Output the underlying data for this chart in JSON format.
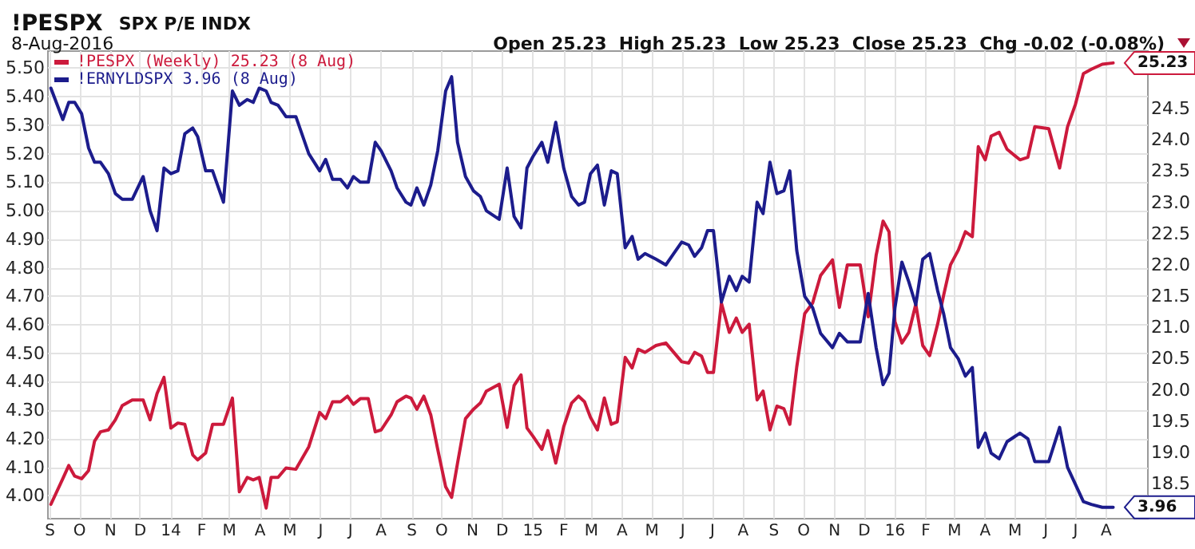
{
  "chart_data": {
    "type": "line",
    "title": "!PESPX",
    "subtitle": "SPX P/E INDX",
    "annotations": [
      "8-Aug-2016",
      "Open 25.23  High 25.23  Low 25.23  Close 25.23  Chg -0.02 (-0.08%)",
      "25.23",
      "3.96"
    ],
    "x": [
      "2013-09-02",
      "2013-09-14",
      "2013-09-20",
      "2013-09-26",
      "2013-10-03",
      "2013-10-10",
      "2013-10-16",
      "2013-10-22",
      "2013-10-30",
      "2013-11-06",
      "2013-11-13",
      "2013-11-23",
      "2013-12-04",
      "2013-12-11",
      "2013-12-18",
      "2013-12-25",
      "2014-01-01",
      "2014-01-08",
      "2014-01-15",
      "2014-01-23",
      "2014-01-28",
      "2014-02-05",
      "2014-02-12",
      "2014-02-23",
      "2014-03-04",
      "2014-03-11",
      "2014-03-19",
      "2014-03-25",
      "2014-03-31",
      "2014-04-07",
      "2014-04-12",
      "2014-04-19",
      "2014-04-27",
      "2014-05-07",
      "2014-05-20",
      "2014-05-31",
      "2014-06-06",
      "2014-06-13",
      "2014-06-21",
      "2014-06-28",
      "2014-07-04",
      "2014-07-11",
      "2014-07-19",
      "2014-07-26",
      "2014-08-01",
      "2014-08-11",
      "2014-08-17",
      "2014-08-26",
      "2014-08-31",
      "2014-09-06",
      "2014-09-13",
      "2014-09-20",
      "2014-09-27",
      "2014-10-05",
      "2014-10-11",
      "2014-10-17",
      "2014-10-25",
      "2014-11-02",
      "2014-11-09",
      "2014-11-15",
      "2014-11-28",
      "2014-12-06",
      "2014-12-13",
      "2014-12-20",
      "2014-12-26",
      "2015-01-01",
      "2015-01-10",
      "2015-01-16",
      "2015-01-24",
      "2015-02-01",
      "2015-02-09",
      "2015-02-16",
      "2015-02-22",
      "2015-02-28",
      "2015-03-07",
      "2015-03-14",
      "2015-03-21",
      "2015-03-27",
      "2015-04-04",
      "2015-04-11",
      "2015-04-17",
      "2015-04-24",
      "2015-05-05",
      "2015-05-15",
      "2015-05-23",
      "2015-05-31",
      "2015-06-07",
      "2015-06-13",
      "2015-06-20",
      "2015-06-26",
      "2015-07-02",
      "2015-07-10",
      "2015-07-18",
      "2015-07-25",
      "2015-07-31",
      "2015-08-07",
      "2015-08-15",
      "2015-08-21",
      "2015-08-28",
      "2015-09-04",
      "2015-09-11",
      "2015-09-17",
      "2015-09-24",
      "2015-10-02",
      "2015-10-10",
      "2015-10-18",
      "2015-10-30",
      "2015-11-06",
      "2015-11-14",
      "2015-11-27",
      "2015-12-05",
      "2015-12-13",
      "2015-12-20",
      "2015-12-26",
      "2016-01-01",
      "2016-01-08",
      "2016-01-15",
      "2016-01-22",
      "2016-01-29",
      "2016-02-05",
      "2016-02-13",
      "2016-02-19",
      "2016-02-26",
      "2016-03-05",
      "2016-03-12",
      "2016-03-19",
      "2016-03-25",
      "2016-04-01",
      "2016-04-07",
      "2016-04-15",
      "2016-04-23",
      "2016-05-06",
      "2016-05-14",
      "2016-05-21",
      "2016-06-04",
      "2016-06-15",
      "2016-06-23",
      "2016-07-01",
      "2016-07-09",
      "2016-07-17",
      "2016-07-28",
      "2016-08-08"
    ],
    "series": [
      {
        "name": "!PESPX (Weekly) 25.23 (8 Aug)",
        "color": "#cc1a3c",
        "axis": "y2",
        "values": [
          18.17,
          18.58,
          18.79,
          18.62,
          18.58,
          18.71,
          19.18,
          19.33,
          19.36,
          19.52,
          19.75,
          19.84,
          19.84,
          19.52,
          19.94,
          20.2,
          19.39,
          19.47,
          19.45,
          18.96,
          18.88,
          18.99,
          19.45,
          19.45,
          19.87,
          18.37,
          18.6,
          18.56,
          18.6,
          18.11,
          18.6,
          18.6,
          18.75,
          18.73,
          19.09,
          19.64,
          19.54,
          19.81,
          19.81,
          19.9,
          19.77,
          19.86,
          19.86,
          19.33,
          19.36,
          19.6,
          19.81,
          19.9,
          19.87,
          19.69,
          19.9,
          19.6,
          19.05,
          18.45,
          18.28,
          18.83,
          19.54,
          19.69,
          19.79,
          19.98,
          20.09,
          19.4,
          20.07,
          20.24,
          19.39,
          19.26,
          19.05,
          19.35,
          18.83,
          19.41,
          19.79,
          19.9,
          19.81,
          19.56,
          19.36,
          19.87,
          19.45,
          19.49,
          20.52,
          20.35,
          20.65,
          20.6,
          20.71,
          20.75,
          20.6,
          20.45,
          20.43,
          20.6,
          20.54,
          20.28,
          20.28,
          21.39,
          20.92,
          21.15,
          20.92,
          21.05,
          19.84,
          19.98,
          19.36,
          19.74,
          19.7,
          19.45,
          20.37,
          21.22,
          21.39,
          21.83,
          22.08,
          21.32,
          22.0,
          22.0,
          21.17,
          22.15,
          22.7,
          22.53,
          21.09,
          20.75,
          20.92,
          21.37,
          20.71,
          20.55,
          21.05,
          21.51,
          22.0,
          22.24,
          22.53,
          22.45,
          23.89,
          23.68,
          24.06,
          24.12,
          23.85,
          23.68,
          23.72,
          24.21,
          24.18,
          23.55,
          24.21,
          24.57,
          25.06,
          25.13,
          25.21,
          25.23
        ]
      },
      {
        "name": "!ERNYLDSPX 3.96 (8 Aug)",
        "color": "#1c1c8c",
        "values": [
          5.43,
          5.32,
          5.38,
          5.38,
          5.34,
          5.22,
          5.17,
          5.17,
          5.13,
          5.06,
          5.04,
          5.04,
          5.12,
          5.0,
          4.93,
          5.15,
          5.13,
          5.14,
          5.27,
          5.29,
          5.26,
          5.14,
          5.14,
          5.03,
          5.42,
          5.37,
          5.39,
          5.38,
          5.43,
          5.42,
          5.38,
          5.37,
          5.33,
          5.33,
          5.2,
          5.14,
          5.18,
          5.11,
          5.11,
          5.08,
          5.12,
          5.1,
          5.1,
          5.24,
          5.21,
          5.14,
          5.08,
          5.03,
          5.02,
          5.08,
          5.02,
          5.09,
          5.21,
          5.42,
          5.47,
          5.24,
          5.12,
          5.07,
          5.05,
          5.0,
          4.97,
          5.15,
          4.98,
          4.94,
          5.15,
          5.19,
          5.24,
          5.17,
          5.31,
          5.15,
          5.05,
          5.02,
          5.03,
          5.13,
          5.16,
          5.02,
          5.14,
          5.13,
          4.87,
          4.91,
          4.83,
          4.85,
          4.83,
          4.81,
          4.85,
          4.89,
          4.88,
          4.84,
          4.87,
          4.93,
          4.93,
          4.68,
          4.77,
          4.72,
          4.77,
          4.75,
          5.03,
          4.99,
          5.17,
          5.06,
          5.07,
          5.14,
          4.86,
          4.7,
          4.66,
          4.57,
          4.52,
          4.57,
          4.54,
          4.54,
          4.71,
          4.52,
          4.39,
          4.43,
          4.66,
          4.82,
          4.75,
          4.67,
          4.83,
          4.85,
          4.72,
          4.64,
          4.52,
          4.48,
          4.42,
          4.45,
          4.17,
          4.22,
          4.15,
          4.13,
          4.19,
          4.22,
          4.2,
          4.12,
          4.12,
          4.24,
          4.1,
          4.04,
          3.98,
          3.97,
          3.96,
          3.96
        ]
      }
    ],
    "xlim": [
      "2013-08-30",
      "2016-09-12"
    ],
    "xticks": [
      {
        "value": "2013-09-01",
        "label": "S"
      },
      {
        "value": "2013-10-01",
        "label": "O"
      },
      {
        "value": "2013-11-01",
        "label": "N"
      },
      {
        "value": "2013-12-01",
        "label": "D"
      },
      {
        "value": "2014-01-01",
        "label": "14"
      },
      {
        "value": "2014-02-01",
        "label": "F"
      },
      {
        "value": "2014-03-01",
        "label": "M"
      },
      {
        "value": "2014-04-01",
        "label": "A"
      },
      {
        "value": "2014-05-01",
        "label": "M"
      },
      {
        "value": "2014-06-01",
        "label": "J"
      },
      {
        "value": "2014-07-01",
        "label": "J"
      },
      {
        "value": "2014-08-01",
        "label": "A"
      },
      {
        "value": "2014-09-01",
        "label": "S"
      },
      {
        "value": "2014-10-01",
        "label": "O"
      },
      {
        "value": "2014-11-01",
        "label": "N"
      },
      {
        "value": "2014-12-01",
        "label": "D"
      },
      {
        "value": "2015-01-01",
        "label": "15"
      },
      {
        "value": "2015-02-01",
        "label": "F"
      },
      {
        "value": "2015-03-01",
        "label": "M"
      },
      {
        "value": "2015-04-01",
        "label": "A"
      },
      {
        "value": "2015-05-01",
        "label": "M"
      },
      {
        "value": "2015-06-01",
        "label": "J"
      },
      {
        "value": "2015-07-01",
        "label": "J"
      },
      {
        "value": "2015-08-01",
        "label": "A"
      },
      {
        "value": "2015-09-01",
        "label": "S"
      },
      {
        "value": "2015-10-01",
        "label": "O"
      },
      {
        "value": "2015-11-01",
        "label": "N"
      },
      {
        "value": "2015-12-01",
        "label": "D"
      },
      {
        "value": "2016-01-01",
        "label": "16"
      },
      {
        "value": "2016-02-01",
        "label": "F"
      },
      {
        "value": "2016-03-01",
        "label": "M"
      },
      {
        "value": "2016-04-01",
        "label": "A"
      },
      {
        "value": "2016-05-01",
        "label": "M"
      },
      {
        "value": "2016-06-01",
        "label": "J"
      },
      {
        "value": "2016-07-01",
        "label": "J"
      },
      {
        "value": "2016-08-01",
        "label": "A"
      }
    ],
    "ylim": [
      3.92,
      5.56
    ],
    "yticks": [
      {
        "value": 4,
        "label": "4.00"
      },
      {
        "value": 4.1,
        "label": "4.10"
      },
      {
        "value": 4.2,
        "label": "4.20"
      },
      {
        "value": 4.3,
        "label": "4.30"
      },
      {
        "value": 4.4,
        "label": "4.40"
      },
      {
        "value": 4.5,
        "label": "4.50"
      },
      {
        "value": 4.6,
        "label": "4.60"
      },
      {
        "value": 4.7,
        "label": "4.70"
      },
      {
        "value": 4.8,
        "label": "4.80"
      },
      {
        "value": 4.9,
        "label": "4.90"
      },
      {
        "value": 5,
        "label": "5.00"
      },
      {
        "value": 5.1,
        "label": "5.10"
      },
      {
        "value": 5.2,
        "label": "5.20"
      },
      {
        "value": 5.3,
        "label": "5.30"
      },
      {
        "value": 5.4,
        "label": "5.40"
      },
      {
        "value": 5.5,
        "label": "5.50"
      }
    ],
    "y2lim": [
      17.94,
      25.42
    ],
    "y2ticks": [
      {
        "value": 18.5,
        "label": "18.5"
      },
      {
        "value": 19,
        "label": "19.0"
      },
      {
        "value": 19.5,
        "label": "19.5"
      },
      {
        "value": 20,
        "label": "20.0"
      },
      {
        "value": 20.5,
        "label": "20.5"
      },
      {
        "value": 21,
        "label": "21.0"
      },
      {
        "value": 21.5,
        "label": "21.5"
      },
      {
        "value": 22,
        "label": "22.0"
      },
      {
        "value": 22.5,
        "label": "22.5"
      },
      {
        "value": 23,
        "label": "23.0"
      },
      {
        "value": 23.5,
        "label": "23.5"
      },
      {
        "value": 24,
        "label": "24.0"
      },
      {
        "value": 24.5,
        "label": "24.5"
      }
    ],
    "grid": true,
    "legend": "top left"
  }
}
